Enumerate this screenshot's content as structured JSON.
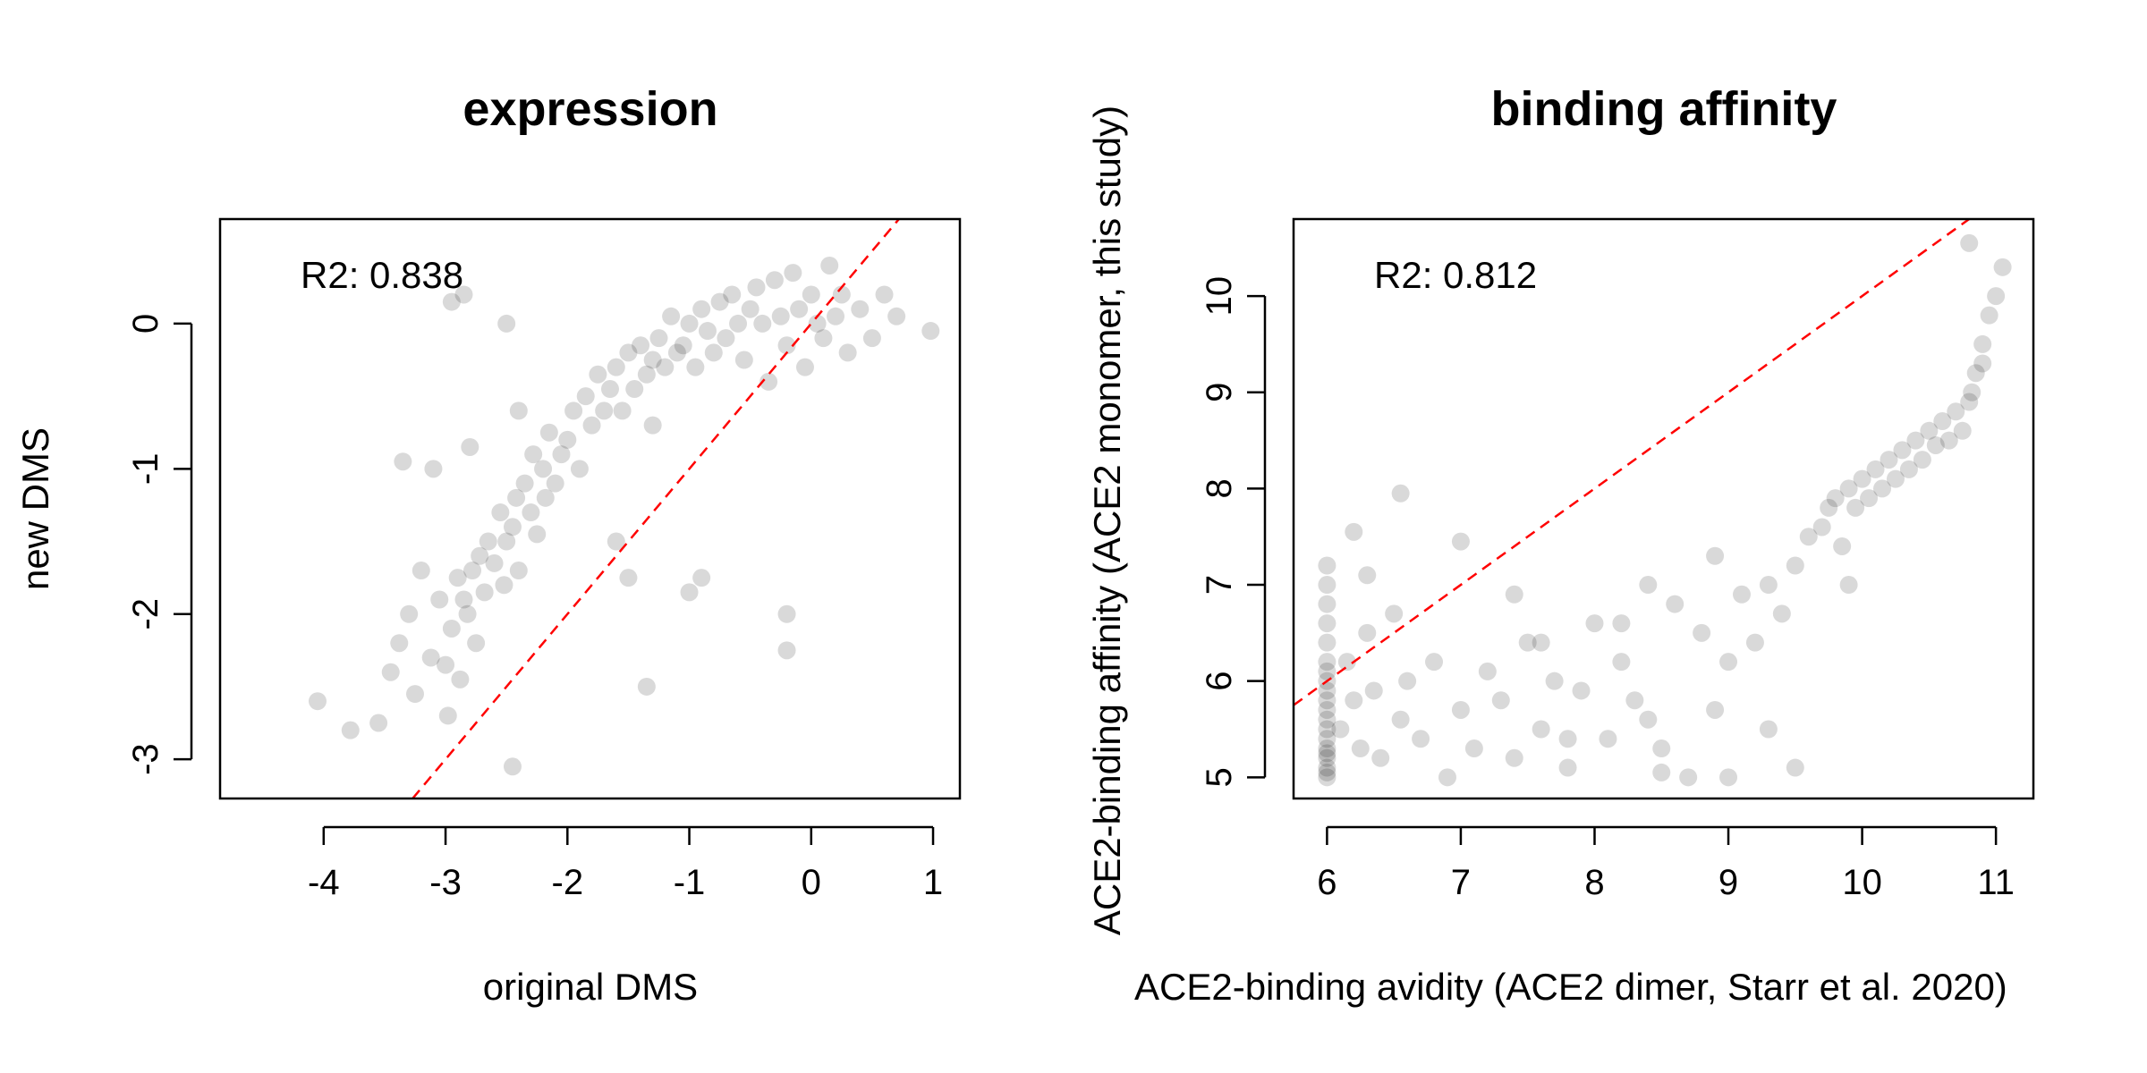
{
  "chart_data": [
    {
      "type": "scatter",
      "title": "expression",
      "xlabel": "original DMS",
      "ylabel": "new DMS",
      "xlim": [
        -4.85,
        1.22
      ],
      "ylim": [
        -3.27,
        0.72
      ],
      "xticks": [
        "-4",
        "-3",
        "-2",
        "-1",
        "0",
        "1"
      ],
      "yticks": [
        "-3",
        "-2",
        "-1",
        "0"
      ],
      "annotation": "R2: 0.838",
      "reference_line": {
        "type": "identity",
        "color": "#ff0000",
        "style": "dashed"
      },
      "point_color": "#000000",
      "point_opacity": 0.15,
      "series": [
        {
          "x": [
            -4.05,
            -3.78,
            -3.55,
            -3.45,
            -3.38,
            -3.3,
            -3.25,
            -3.2,
            -3.12,
            -3.05,
            -3.0,
            -2.98,
            -2.95,
            -2.9,
            -2.88,
            -2.85,
            -2.82,
            -2.78,
            -2.75,
            -2.72,
            -2.68,
            -2.65,
            -2.6,
            -2.55,
            -2.52,
            -2.5,
            -2.45,
            -2.42,
            -2.4,
            -2.35,
            -2.3,
            -2.28,
            -2.25,
            -2.2,
            -2.18,
            -2.15,
            -2.1,
            -2.05,
            -2.0,
            -1.95,
            -1.9,
            -1.85,
            -1.8,
            -1.75,
            -1.7,
            -1.65,
            -1.6,
            -1.55,
            -1.5,
            -1.45,
            -1.4,
            -1.35,
            -1.3,
            -1.25,
            -1.2,
            -1.15,
            -1.1,
            -1.05,
            -1.0,
            -0.95,
            -0.9,
            -0.85,
            -0.8,
            -0.75,
            -0.7,
            -0.65,
            -0.6,
            -0.55,
            -0.5,
            -0.45,
            -0.4,
            -0.35,
            -0.3,
            -0.25,
            -0.2,
            -0.15,
            -0.1,
            -0.05,
            0.0,
            0.05,
            0.1,
            0.15,
            0.2,
            0.25,
            0.3,
            0.4,
            0.5,
            0.6,
            0.7,
            0.98,
            -2.95,
            -2.85,
            -2.5,
            -2.4,
            -1.6,
            -1.5,
            -1.35,
            -1.0,
            -0.9,
            -0.2,
            -0.2,
            -2.45,
            -1.3,
            -3.1,
            -3.35,
            -2.8
          ],
          "y": [
            -2.6,
            -2.8,
            -2.75,
            -2.4,
            -2.2,
            -2.0,
            -2.55,
            -1.7,
            -2.3,
            -1.9,
            -2.35,
            -2.7,
            -2.1,
            -1.75,
            -2.45,
            -1.9,
            -2.0,
            -1.7,
            -2.2,
            -1.6,
            -1.85,
            -1.5,
            -1.65,
            -1.3,
            -1.8,
            -1.5,
            -1.4,
            -1.2,
            -1.7,
            -1.1,
            -1.3,
            -0.9,
            -1.45,
            -1.0,
            -1.2,
            -0.75,
            -1.1,
            -0.9,
            -0.8,
            -0.6,
            -1.0,
            -0.5,
            -0.7,
            -0.35,
            -0.6,
            -0.45,
            -0.3,
            -0.6,
            -0.2,
            -0.45,
            -0.15,
            -0.35,
            -0.25,
            -0.1,
            -0.3,
            0.05,
            -0.2,
            -0.15,
            0.0,
            -0.3,
            0.1,
            -0.05,
            -0.2,
            0.15,
            -0.1,
            0.2,
            0.0,
            -0.25,
            0.1,
            0.25,
            0.0,
            -0.4,
            0.3,
            0.05,
            -0.15,
            0.35,
            0.1,
            -0.3,
            0.2,
            0.0,
            -0.1,
            0.4,
            0.05,
            0.2,
            -0.2,
            0.1,
            -0.1,
            0.2,
            0.05,
            -0.05,
            0.15,
            0.2,
            0.0,
            -0.6,
            -1.5,
            -1.75,
            -2.5,
            -1.85,
            -1.75,
            -2.0,
            -2.25,
            -3.05,
            -0.7,
            -1.0,
            -0.95,
            -0.85
          ]
        }
      ]
    },
    {
      "type": "scatter",
      "title": "binding affinity",
      "xlabel": "ACE2-binding avidity (ACE2 dimer, Starr et al. 2020)",
      "ylabel": "ACE2-binding affinity (ACE2 monomer, this study)",
      "xlim": [
        5.75,
        11.28
      ],
      "ylim": [
        4.78,
        10.8
      ],
      "xticks": [
        "6",
        "7",
        "8",
        "9",
        "10",
        "11"
      ],
      "yticks": [
        "5",
        "6",
        "7",
        "8",
        "9",
        "10"
      ],
      "annotation": "R2: 0.812",
      "reference_line": {
        "type": "identity",
        "color": "#ff0000",
        "style": "dashed"
      },
      "point_color": "#000000",
      "point_opacity": 0.15,
      "series": [
        {
          "x": [
            6.0,
            6.0,
            6.0,
            6.0,
            6.0,
            6.0,
            6.0,
            6.0,
            6.0,
            6.0,
            6.0,
            6.0,
            6.0,
            6.0,
            6.0,
            6.0,
            6.0,
            6.0,
            6.0,
            6.0,
            6.1,
            6.15,
            6.2,
            6.25,
            6.3,
            6.35,
            6.4,
            6.5,
            6.55,
            6.6,
            6.7,
            6.8,
            6.9,
            7.0,
            7.1,
            7.2,
            7.3,
            7.4,
            7.5,
            7.6,
            7.7,
            7.8,
            7.9,
            8.0,
            8.1,
            8.2,
            8.3,
            8.4,
            8.5,
            8.6,
            8.7,
            8.8,
            8.9,
            9.0,
            9.1,
            9.2,
            9.3,
            9.4,
            9.5,
            9.6,
            9.7,
            9.75,
            9.8,
            9.85,
            9.9,
            9.95,
            10.0,
            10.05,
            10.1,
            10.15,
            10.2,
            10.25,
            10.3,
            10.35,
            10.4,
            10.45,
            10.5,
            10.55,
            10.6,
            10.65,
            10.7,
            10.75,
            10.8,
            10.82,
            10.85,
            10.9,
            10.95,
            11.0,
            11.05,
            10.8,
            10.9,
            6.2,
            6.55,
            6.3,
            7.0,
            7.4,
            7.6,
            7.8,
            8.5,
            8.9,
            9.0,
            9.3,
            9.5,
            8.4,
            8.2,
            9.9
          ],
          "y": [
            5.0,
            5.1,
            5.2,
            5.3,
            5.4,
            5.5,
            5.6,
            5.7,
            5.8,
            5.9,
            6.0,
            6.1,
            6.2,
            6.4,
            6.6,
            6.8,
            7.0,
            7.2,
            5.05,
            5.25,
            5.5,
            6.2,
            5.8,
            5.3,
            6.5,
            5.9,
            5.2,
            6.7,
            5.6,
            6.0,
            5.4,
            6.2,
            5.0,
            5.7,
            5.3,
            6.1,
            5.8,
            5.2,
            6.4,
            5.5,
            6.0,
            5.1,
            5.9,
            6.6,
            5.4,
            6.2,
            5.8,
            5.6,
            5.3,
            6.8,
            5.0,
            6.5,
            5.7,
            6.2,
            6.9,
            6.4,
            7.0,
            6.7,
            7.2,
            7.5,
            7.6,
            7.8,
            7.9,
            7.4,
            8.0,
            7.8,
            8.1,
            7.9,
            8.2,
            8.0,
            8.3,
            8.1,
            8.4,
            8.2,
            8.5,
            8.3,
            8.6,
            8.45,
            8.7,
            8.5,
            8.8,
            8.6,
            8.9,
            9.0,
            9.2,
            9.5,
            9.8,
            10.0,
            10.3,
            10.55,
            9.3,
            7.55,
            7.95,
            7.1,
            7.45,
            6.9,
            6.4,
            5.4,
            5.05,
            7.3,
            5.0,
            5.5,
            5.1,
            7.0,
            6.6,
            7.0
          ]
        }
      ]
    }
  ]
}
